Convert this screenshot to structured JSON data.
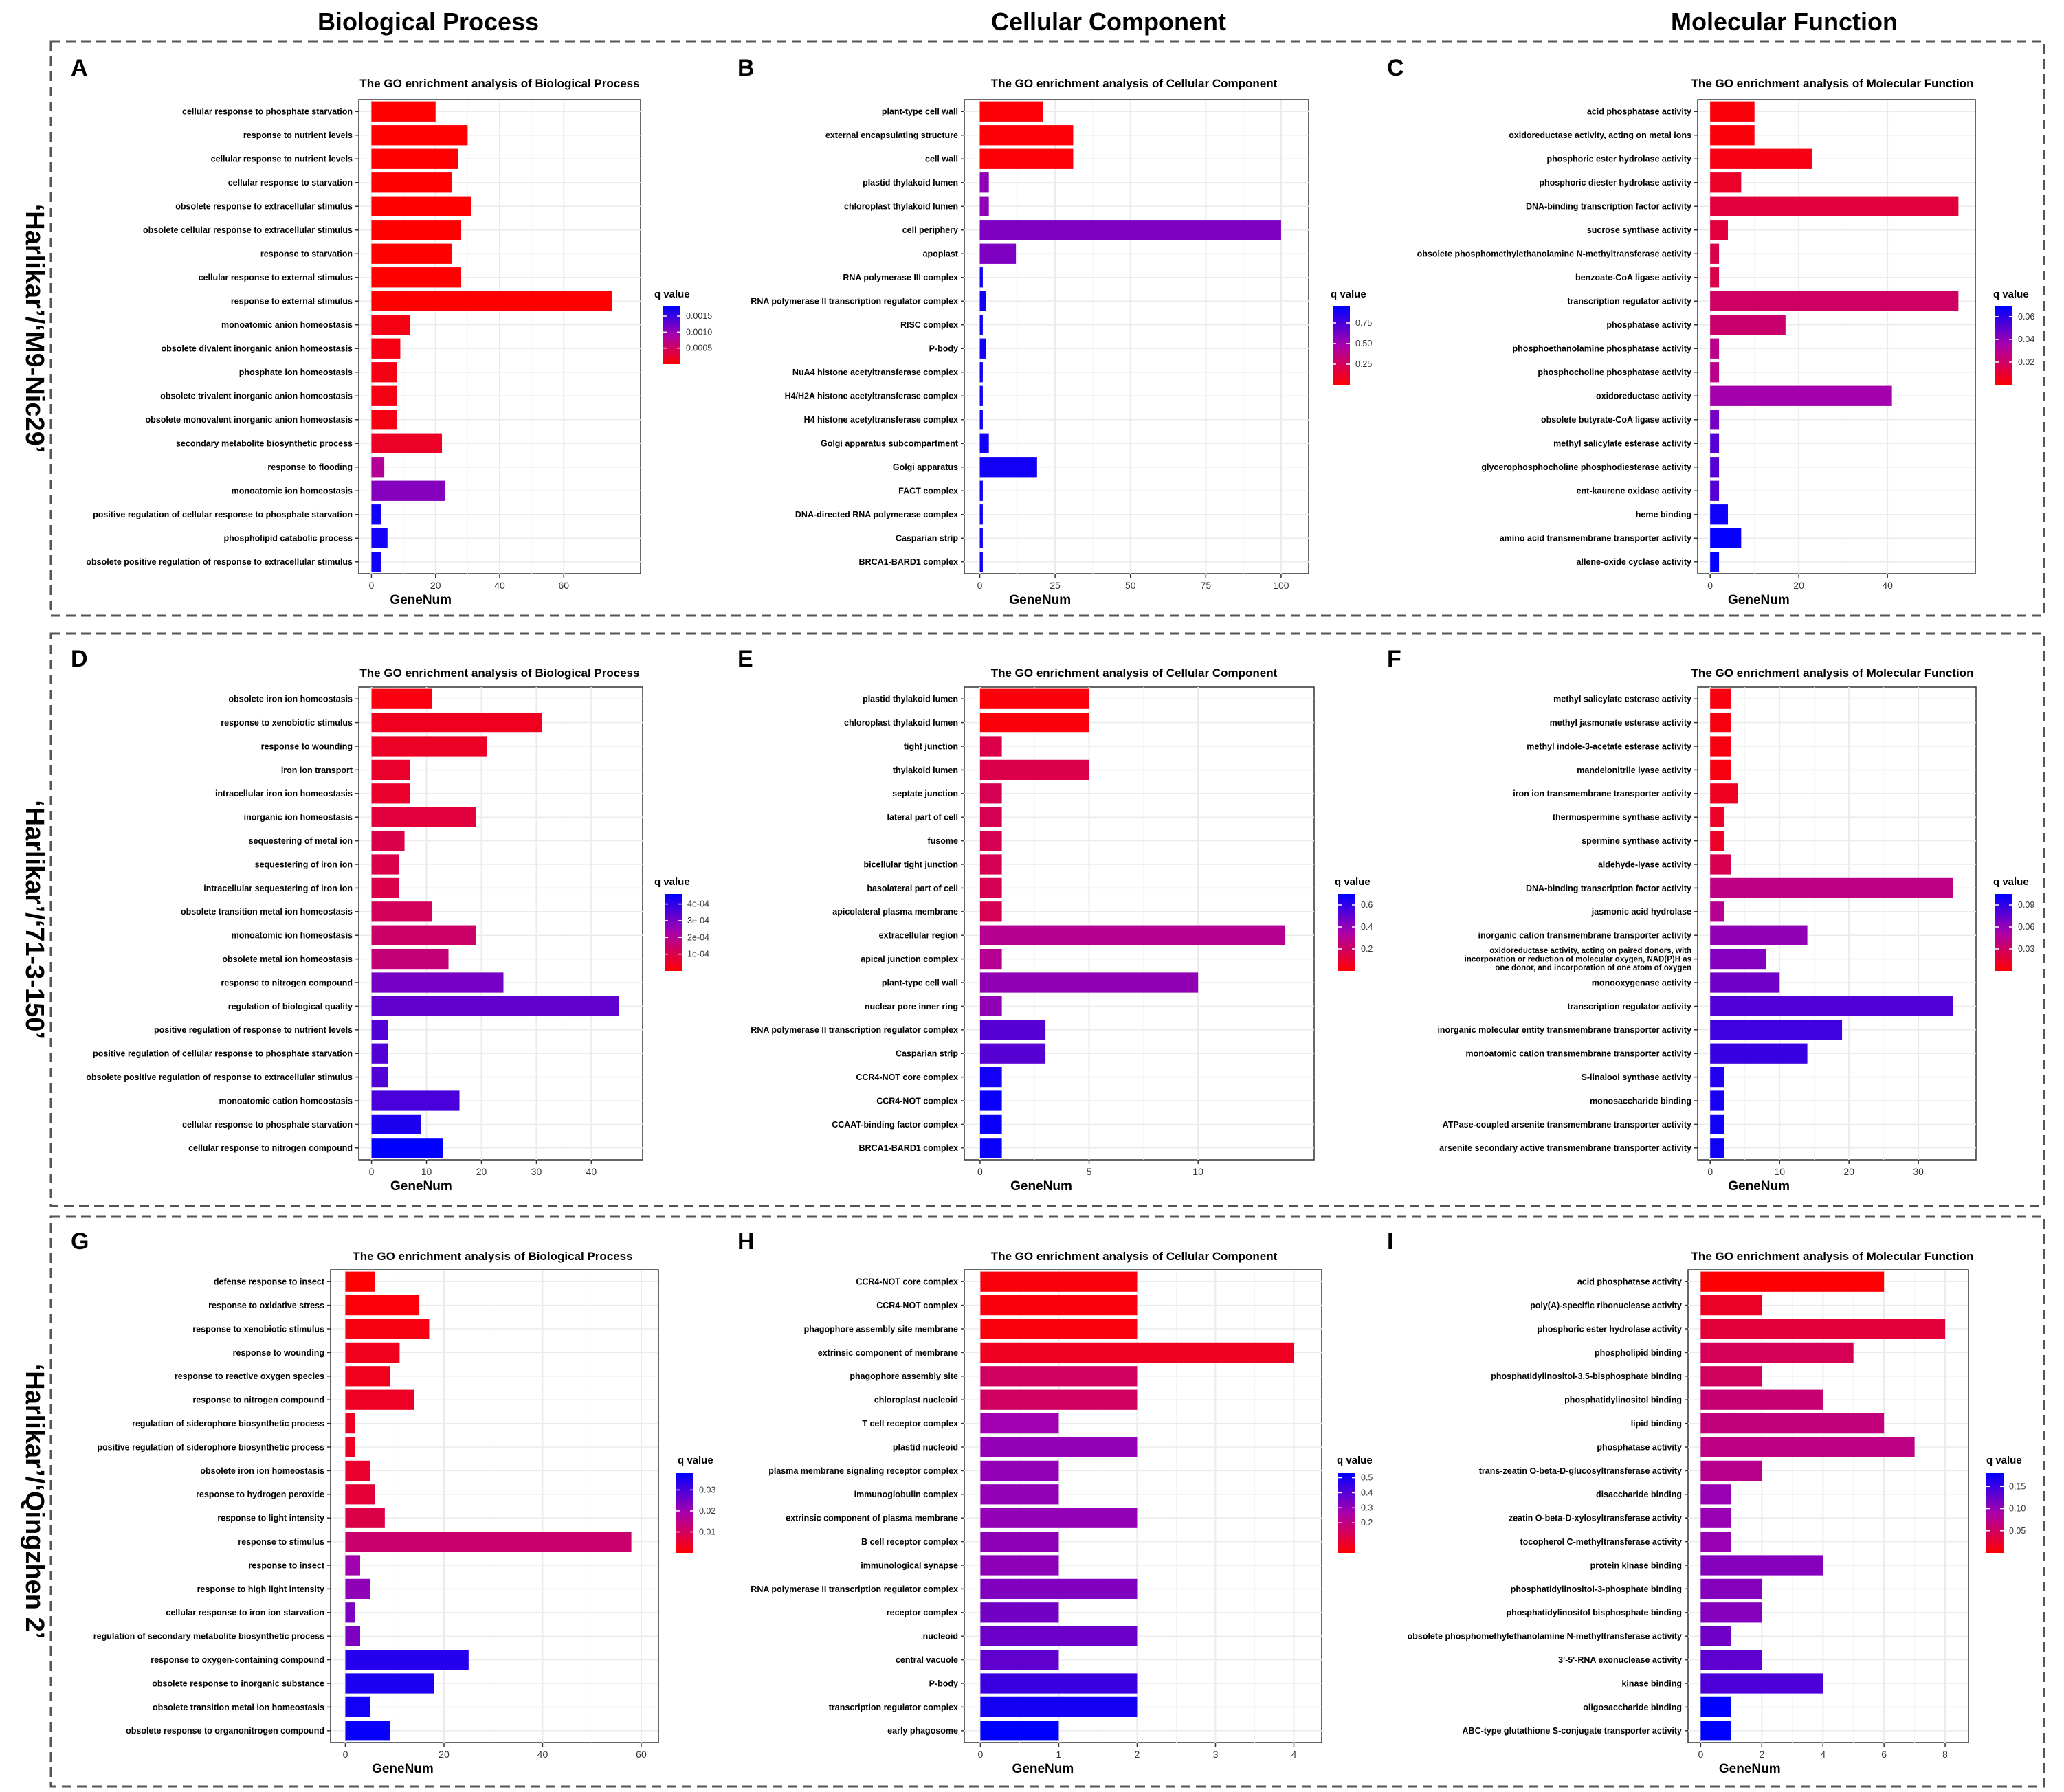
{
  "column_headers": [
    "Biological Process",
    "Cellular Component",
    "Molecular Function"
  ],
  "row_labels": [
    "‘Harlikar’/‘M9-Nic29’",
    "‘Harlikar’/‘71-3-150’",
    "‘Harlikar’/‘Qingzhen 2’"
  ],
  "colors": {
    "low_q": "#ff0000",
    "high_q": "#0000ff",
    "grid": "#ebebeb",
    "frame": "#333333",
    "dashed_border": "#555555"
  },
  "chart_data": [
    {
      "panel": "A",
      "type": "bar",
      "orientation": "horizontal",
      "title": "The GO enrichment analysis of Biological Process",
      "xlabel": "GeneNum",
      "legend_title": "q value",
      "xlim": [
        0,
        80
      ],
      "xticks": [
        0,
        20,
        40,
        60
      ],
      "legend": {
        "min": 0,
        "max": 0.0018,
        "ticks": [
          0.0005,
          0.001,
          0.0015
        ],
        "tick_labels": [
          "0.0005",
          "0.0010",
          "0.0015"
        ]
      },
      "categories": [
        "cellular response to phosphate starvation",
        "response to nutrient levels",
        "cellular response to nutrient levels",
        "cellular response to starvation",
        "obsolete response to extracellular stimulus",
        "obsolete cellular response to extracellular stimulus",
        "response to starvation",
        "cellular response to external stimulus",
        "response to external stimulus",
        "monoatomic anion homeostasis",
        "obsolete divalent inorganic anion homeostasis",
        "phosphate ion homeostasis",
        "obsolete trivalent inorganic anion homeostasis",
        "obsolete monovalent inorganic anion homeostasis",
        "secondary metabolite biosynthetic process",
        "response to flooding",
        "monoatomic ion homeostasis",
        "positive regulation of cellular response to phosphate starvation",
        "phospholipid catabolic process",
        "obsolete positive regulation of response to extracellular stimulus"
      ],
      "values": [
        20,
        30,
        27,
        25,
        31,
        28,
        25,
        28,
        75,
        12,
        9,
        8,
        8,
        8,
        22,
        4,
        23,
        3,
        5,
        3
      ],
      "qvalues": [
        0,
        0,
        0,
        0,
        0,
        0,
        0,
        0,
        0,
        0.0001,
        0.0001,
        0.0001,
        0.0001,
        0.0001,
        0.0002,
        0.0008,
        0.0011,
        0.0017,
        0.0017,
        0.0017
      ]
    },
    {
      "panel": "B",
      "type": "bar",
      "orientation": "horizontal",
      "title": "The GO enrichment analysis of Cellular Component",
      "xlabel": "GeneNum",
      "legend_title": "q value",
      "xlim": [
        0,
        104
      ],
      "xticks": [
        0,
        25,
        50,
        75,
        100
      ],
      "legend": {
        "min": 0,
        "max": 0.95,
        "ticks": [
          0.25,
          0.5,
          0.75
        ],
        "tick_labels": [
          "0.25",
          "0.50",
          "0.75"
        ]
      },
      "categories": [
        "plant-type cell wall",
        "external encapsulating structure",
        "cell wall",
        "plastid thylakoid lumen",
        "chloroplast thylakoid lumen",
        "cell periphery",
        "apoplast",
        "RNA polymerase III complex",
        "RNA polymerase II transcription regulator complex",
        "RISC complex",
        "P-body",
        "NuA4 histone acetyltransferase complex",
        "H4/H2A histone acetyltransferase complex",
        "H4 histone acetyltransferase complex",
        "Golgi apparatus subcompartment",
        "Golgi apparatus",
        "FACT complex",
        "DNA-directed RNA polymerase complex",
        "Casparian strip",
        "BRCA1-BARD1 complex"
      ],
      "values": [
        21,
        31,
        31,
        3,
        3,
        100,
        12,
        1,
        2,
        1,
        2,
        1,
        1,
        1,
        3,
        19,
        1,
        1,
        1,
        1
      ],
      "qvalues": [
        0.02,
        0.02,
        0.02,
        0.55,
        0.55,
        0.6,
        0.6,
        0.9,
        0.9,
        0.9,
        0.9,
        0.9,
        0.9,
        0.9,
        0.9,
        0.9,
        0.9,
        0.9,
        0.9,
        0.9
      ]
    },
    {
      "panel": "C",
      "type": "bar",
      "orientation": "horizontal",
      "title": "The GO enrichment analysis of Molecular Function",
      "xlabel": "GeneNum",
      "legend_title": "q value",
      "xlim": [
        0,
        57
      ],
      "xticks": [
        0,
        20,
        40
      ],
      "legend": {
        "min": 0,
        "max": 0.069,
        "ticks": [
          0.02,
          0.04,
          0.06
        ],
        "tick_labels": [
          "0.02",
          "0.04",
          "0.06"
        ]
      },
      "categories": [
        "acid phosphatase activity",
        "oxidoreductase activity, acting on metal ions",
        "phosphoric ester hydrolase activity",
        "phosphoric diester hydrolase activity",
        "DNA-binding transcription factor activity",
        "sucrose synthase activity",
        "obsolete phosphomethylethanolamine N-methyltransferase activity",
        "benzoate-CoA ligase activity",
        "transcription regulator activity",
        "phosphatase activity",
        "phosphoethanolamine phosphatase activity",
        "phosphocholine phosphatase activity",
        "oxidoreductase activity",
        "obsolete butyrate-CoA ligase activity",
        "methyl salicylate esterase activity",
        "glycerophosphocholine phosphodiesterase activity",
        "ent-kaurene oxidase activity",
        "heme binding",
        "amino acid transmembrane transporter activity",
        "allene-oxide cyclase activity"
      ],
      "values": [
        10,
        10,
        23,
        7,
        56,
        4,
        2,
        2,
        56,
        17,
        2,
        2,
        41,
        2,
        2,
        2,
        2,
        4,
        7,
        2
      ],
      "qvalues": [
        0.002,
        0.002,
        0.004,
        0.008,
        0.012,
        0.012,
        0.015,
        0.015,
        0.02,
        0.022,
        0.028,
        0.028,
        0.036,
        0.045,
        0.052,
        0.052,
        0.052,
        0.066,
        0.068,
        0.068
      ]
    },
    {
      "panel": "D",
      "type": "bar",
      "orientation": "horizontal",
      "title": "The GO enrichment analysis of Biological Process",
      "xlabel": "GeneNum",
      "legend_title": "q value",
      "xlim": [
        0,
        47
      ],
      "xticks": [
        0,
        10,
        20,
        30,
        40
      ],
      "legend": {
        "min": 0,
        "max": 0.00046,
        "ticks": [
          0.0001,
          0.0002,
          0.0003,
          0.0004
        ],
        "tick_labels": [
          "1e-04",
          "2e-04",
          "3e-04",
          "4e-04"
        ]
      },
      "categories": [
        "obsolete iron ion homeostasis",
        "response to xenobiotic stimulus",
        "response to wounding",
        "iron ion transport",
        "intracellular iron ion homeostasis",
        "inorganic ion homeostasis",
        "sequestering of metal ion",
        "sequestering of iron ion",
        "intracellular sequestering of iron ion",
        "obsolete transition metal ion homeostasis",
        "monoatomic ion homeostasis",
        "obsolete metal ion homeostasis",
        "response to nitrogen compound",
        "regulation of biological quality",
        "positive regulation of response to nutrient levels",
        "positive regulation of cellular response to phosphate starvation",
        "obsolete positive regulation of response to extracellular stimulus",
        "monoatomic cation homeostasis",
        "cellular response to phosphate starvation",
        "cellular response to nitrogen compound"
      ],
      "values": [
        11,
        31,
        21,
        7,
        7,
        19,
        6,
        5,
        5,
        11,
        19,
        14,
        24,
        45,
        3,
        3,
        3,
        16,
        9,
        13
      ],
      "qvalues": [
        2e-05,
        4e-05,
        5e-05,
        6e-05,
        6e-05,
        8e-05,
        0.0001,
        0.0001,
        0.0001,
        0.00012,
        0.00014,
        0.00016,
        0.0003,
        0.00033,
        0.00035,
        0.00035,
        0.00035,
        0.00036,
        0.00042,
        0.00046
      ]
    },
    {
      "panel": "E",
      "type": "bar",
      "orientation": "horizontal",
      "title": "The GO enrichment analysis of Cellular Component",
      "xlabel": "GeneNum",
      "legend_title": "q value",
      "xlim": [
        0,
        14.6
      ],
      "xticks": [
        0,
        5,
        10
      ],
      "legend": {
        "min": 0,
        "max": 0.7,
        "ticks": [
          0.2,
          0.4,
          0.6
        ],
        "tick_labels": [
          "0.2",
          "0.4",
          "0.6"
        ]
      },
      "categories": [
        "plastid thylakoid lumen",
        "chloroplast thylakoid lumen",
        "tight junction",
        "thylakoid lumen",
        "septate junction",
        "lateral part of cell",
        "fusome",
        "bicellular tight junction",
        "basolateral part of cell",
        "apicolateral plasma membrane",
        "extracellular region",
        "apical junction complex",
        "plant-type cell wall",
        "nuclear pore inner ring",
        "RNA polymerase II transcription regulator complex",
        "Casparian strip",
        "CCR4-NOT core complex",
        "CCR4-NOT complex",
        "CCAAT-binding factor complex",
        "BRCA1-BARD1 complex"
      ],
      "values": [
        5,
        5,
        1,
        5,
        1,
        1,
        1,
        1,
        1,
        1,
        14,
        1,
        10,
        1,
        3,
        3,
        1,
        1,
        1,
        1
      ],
      "qvalues": [
        0.02,
        0.02,
        0.15,
        0.15,
        0.17,
        0.17,
        0.17,
        0.17,
        0.17,
        0.17,
        0.3,
        0.3,
        0.4,
        0.4,
        0.52,
        0.52,
        0.66,
        0.68,
        0.68,
        0.68
      ]
    },
    {
      "panel": "F",
      "type": "bar",
      "orientation": "horizontal",
      "title": "The GO enrichment analysis of Molecular Function",
      "xlabel": "GeneNum",
      "legend_title": "q value",
      "xlim": [
        0,
        36.5
      ],
      "xticks": [
        0,
        10,
        20,
        30
      ],
      "legend": {
        "min": 0,
        "max": 0.105,
        "ticks": [
          0.03,
          0.06,
          0.09
        ],
        "tick_labels": [
          "0.03",
          "0.06",
          "0.09"
        ]
      },
      "categories": [
        "methyl salicylate esterase activity",
        "methyl jasmonate esterase activity",
        "methyl indole-3-acetate esterase activity",
        "mandelonitrile lyase activity",
        "iron ion transmembrane transporter activity",
        "thermospermine synthase activity",
        "spermine synthase activity",
        "aldehyde-lyase activity",
        "DNA-binding transcription factor activity",
        "jasmonic acid hydrolase",
        "inorganic cation transmembrane transporter activity",
        "oxidoreductase activity, acting on paired donors, with incorporation or reduction of molecular oxygen, NAD(P)H as one donor, and incorporation of one atom of oxygen",
        "monooxygenase activity",
        "transcription regulator activity",
        "inorganic molecular entity transmembrane transporter activity",
        "monoatomic cation transmembrane transporter activity",
        "S-linalool synthase activity",
        "monosaccharide binding",
        "ATPase-coupled arsenite transmembrane transporter activity",
        "arsenite secondary active transmembrane transporter activity"
      ],
      "values": [
        3,
        3,
        3,
        3,
        4,
        2,
        2,
        3,
        35,
        2,
        14,
        8,
        10,
        35,
        19,
        14,
        2,
        2,
        2,
        2
      ],
      "qvalues": [
        0.005,
        0.005,
        0.005,
        0.005,
        0.01,
        0.012,
        0.012,
        0.025,
        0.04,
        0.045,
        0.06,
        0.065,
        0.07,
        0.08,
        0.085,
        0.088,
        0.095,
        0.098,
        0.1,
        0.1
      ]
    },
    {
      "panel": "G",
      "type": "bar",
      "orientation": "horizontal",
      "title": "The GO enrichment analysis of Biological Process",
      "xlabel": "GeneNum",
      "legend_title": "q value",
      "xlim": [
        0,
        60.5
      ],
      "xticks": [
        0,
        20,
        40,
        60
      ],
      "legend": {
        "min": 0,
        "max": 0.038,
        "ticks": [
          0.01,
          0.02,
          0.03
        ],
        "tick_labels": [
          "0.01",
          "0.02",
          "0.03"
        ]
      },
      "categories": [
        "defense response to insect",
        "response to oxidative stress",
        "response to xenobiotic stimulus",
        "response to wounding",
        "response to reactive oxygen species",
        "response to nitrogen compound",
        "regulation of siderophore biosynthetic process",
        "positive regulation of siderophore biosynthetic process",
        "obsolete iron ion homeostasis",
        "response to hydrogen peroxide",
        "response to light intensity",
        "response to stimulus",
        "response to insect",
        "response to high light intensity",
        "cellular response to iron ion starvation",
        "regulation of secondary metabolite biosynthetic process",
        "response to oxygen-containing compound",
        "obsolete response to inorganic substance",
        "obsolete transition metal ion homeostasis",
        "obsolete response to organonitrogen compound"
      ],
      "values": [
        6,
        15,
        17,
        11,
        9,
        14,
        2,
        2,
        5,
        6,
        8,
        58,
        3,
        5,
        2,
        3,
        25,
        18,
        5,
        9
      ],
      "qvalues": [
        0.0005,
        0.001,
        0.002,
        0.003,
        0.003,
        0.004,
        0.004,
        0.004,
        0.005,
        0.006,
        0.008,
        0.012,
        0.02,
        0.022,
        0.024,
        0.024,
        0.034,
        0.035,
        0.036,
        0.037
      ]
    },
    {
      "panel": "H",
      "type": "bar",
      "orientation": "horizontal",
      "title": "The GO enrichment analysis of Cellular Component",
      "xlabel": "GeneNum",
      "legend_title": "q value",
      "xlim": [
        0,
        4.15
      ],
      "xticks": [
        0,
        1,
        2,
        3,
        4
      ],
      "legend": {
        "min": 0,
        "max": 0.53,
        "ticks": [
          0.2,
          0.3,
          0.4,
          0.5
        ],
        "tick_labels": [
          "0.2",
          "0.3",
          "0.4",
          "0.5"
        ]
      },
      "categories": [
        "CCR4-NOT core complex",
        "CCR4-NOT complex",
        "phagophore assembly site membrane",
        "extrinsic component of membrane",
        "phagophore assembly site",
        "chloroplast nucleoid",
        "T cell receptor complex",
        "plastid nucleoid",
        "plasma membrane signaling receptor complex",
        "immunoglobulin complex",
        "extrinsic component of plasma membrane",
        "B cell receptor complex",
        "immunological synapse",
        "RNA polymerase II transcription regulator complex",
        "receptor complex",
        "nucleoid",
        "central vacuole",
        "P-body",
        "transcription regulator complex",
        "early phagosome"
      ],
      "values": [
        2,
        2,
        2,
        4,
        2,
        2,
        1,
        2,
        1,
        1,
        2,
        1,
        1,
        2,
        1,
        2,
        1,
        2,
        2,
        1
      ],
      "qvalues": [
        0.02,
        0.02,
        0.02,
        0.05,
        0.15,
        0.15,
        0.28,
        0.3,
        0.3,
        0.3,
        0.3,
        0.31,
        0.31,
        0.33,
        0.35,
        0.36,
        0.38,
        0.44,
        0.5,
        0.53
      ]
    },
    {
      "panel": "I",
      "type": "bar",
      "orientation": "horizontal",
      "title": "The GO enrichment analysis of Molecular Function",
      "xlabel": "GeneNum",
      "legend_title": "q value",
      "xlim": [
        0,
        8.35
      ],
      "xticks": [
        0,
        2,
        4,
        6,
        8
      ],
      "legend": {
        "min": 0,
        "max": 0.18,
        "ticks": [
          0.05,
          0.1,
          0.15
        ],
        "tick_labels": [
          "0.05",
          "0.10",
          "0.15"
        ]
      },
      "categories": [
        "acid phosphatase activity",
        "poly(A)-specific ribonuclease activity",
        "phosphoric ester hydrolase activity",
        "phospholipid binding",
        "phosphatidylinositol-3,5-bisphosphate binding",
        "phosphatidylinositol binding",
        "lipid binding",
        "phosphatase activity",
        "trans-zeatin O-beta-D-glucosyltransferase activity",
        "disaccharide binding",
        "zeatin O-beta-D-xylosyltransferase activity",
        "tocopherol C-methyltransferase activity",
        "protein kinase binding",
        "phosphatidylinositol-3-phosphate binding",
        "phosphatidylinositol bisphosphate binding",
        "obsolete phosphomethylethanolamine N-methyltransferase activity",
        "3'-5'-RNA exonuclease activity",
        "kinase binding",
        "oligosaccharide binding",
        "ABC-type glutathione S-conjugate transporter activity"
      ],
      "values": [
        6,
        2,
        8,
        5,
        2,
        4,
        6,
        7,
        2,
        1,
        1,
        1,
        4,
        2,
        2,
        1,
        2,
        4,
        1,
        1
      ],
      "qvalues": [
        0.002,
        0.02,
        0.03,
        0.045,
        0.05,
        0.06,
        0.065,
        0.07,
        0.075,
        0.1,
        0.1,
        0.1,
        0.11,
        0.11,
        0.11,
        0.12,
        0.13,
        0.14,
        0.18,
        0.18
      ]
    }
  ]
}
